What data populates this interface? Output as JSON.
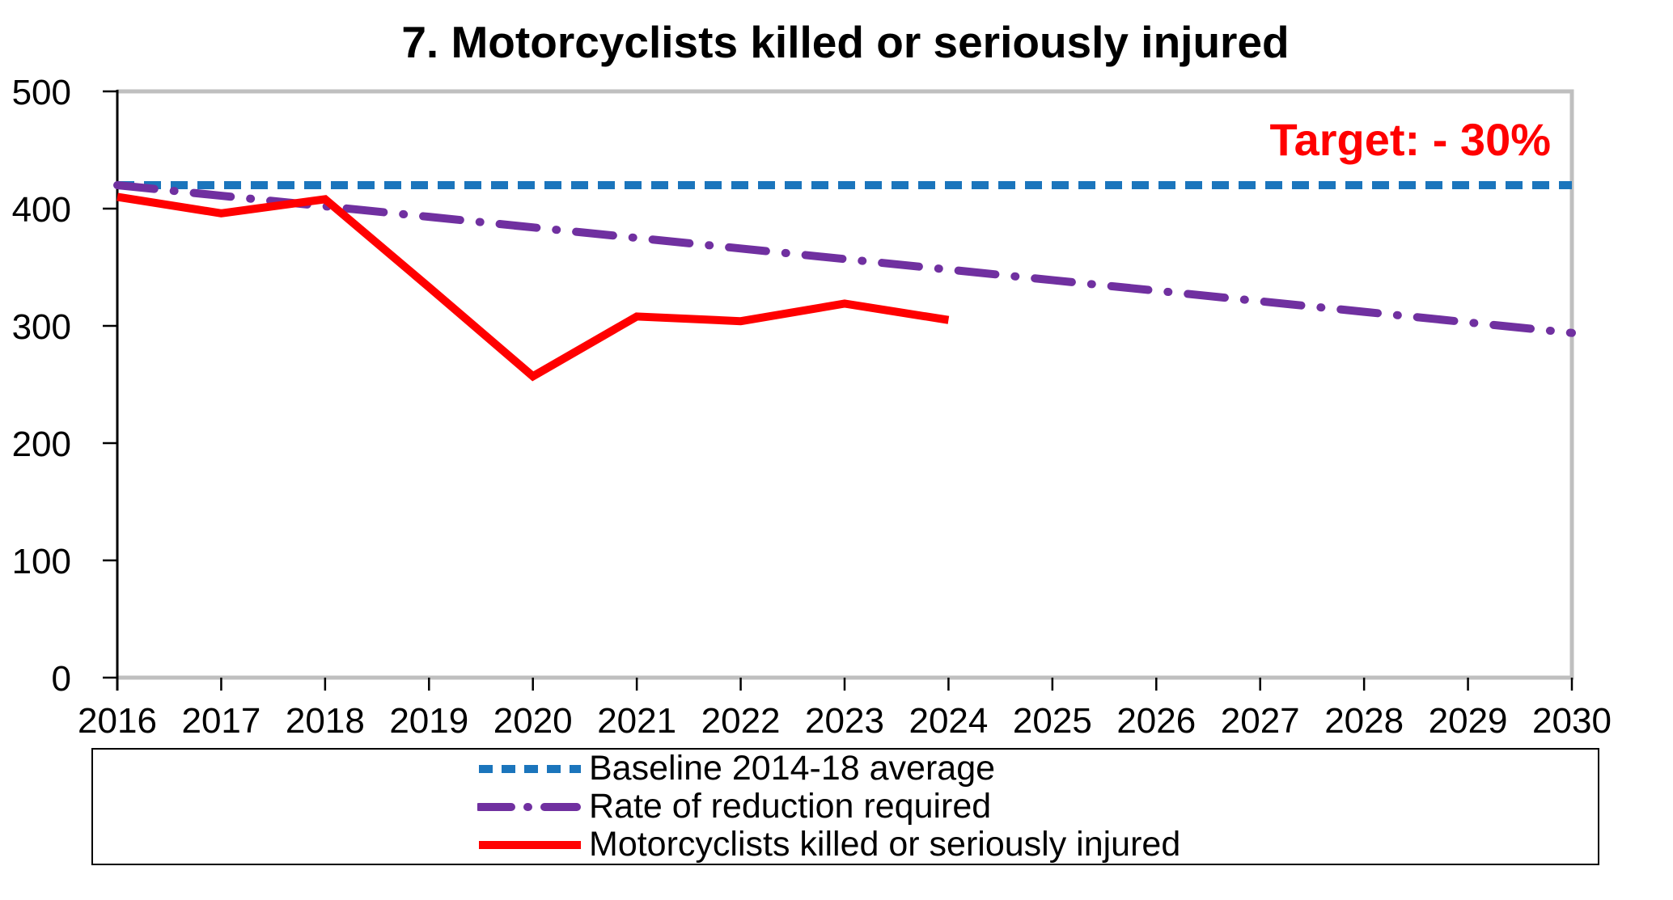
{
  "annotation": {
    "text": "Target: - 30%",
    "color": "#FF0000"
  },
  "chart_data": {
    "type": "line",
    "title": "7. Motorcyclists killed or seriously injured",
    "x": [
      2016,
      2017,
      2018,
      2019,
      2020,
      2021,
      2022,
      2023,
      2024,
      2025,
      2026,
      2027,
      2028,
      2029,
      2030
    ],
    "ylim": [
      0,
      500
    ],
    "yticks": [
      0,
      100,
      200,
      300,
      400,
      500
    ],
    "grid": false,
    "legend_position": "bottom",
    "series": [
      {
        "name": "Baseline 2014-18 average",
        "color": "#1B75BC",
        "style": "dashed",
        "values": [
          420,
          420,
          420,
          420,
          420,
          420,
          420,
          420,
          420,
          420,
          420,
          420,
          420,
          420,
          420
        ]
      },
      {
        "name": "Rate of reduction required",
        "color": "#7030A0",
        "style": "dashdot",
        "values": [
          420,
          411,
          402,
          393,
          384,
          375,
          366,
          357,
          348,
          339,
          330,
          321,
          312,
          303,
          294
        ]
      },
      {
        "name": "Motorcyclists killed or seriously injured",
        "color": "#FF0000",
        "style": "solid",
        "values": [
          410,
          396,
          408,
          333,
          257,
          308,
          304,
          319,
          305
        ]
      }
    ]
  }
}
